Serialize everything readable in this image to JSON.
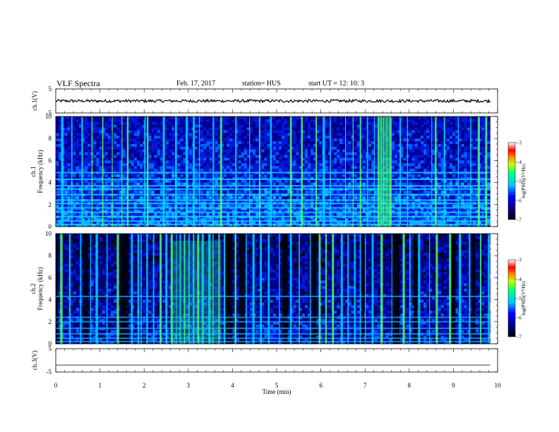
{
  "header": {
    "title": "VLF Spectra",
    "date": "Feb. 17, 2017",
    "station": "station= HUS",
    "start": "start  UT =   12: 10: 3"
  },
  "chart_data": {
    "type": "heatmap",
    "title": "VLF Spectra",
    "xlabel": "Time  (min)",
    "xlim": [
      0,
      10
    ],
    "x_ticks": [
      "0",
      "1",
      "2",
      "3",
      "4",
      "5",
      "6",
      "7",
      "8",
      "9",
      "10"
    ],
    "panels": [
      {
        "name": "ch.1",
        "type": "line",
        "ylabel": "ch.1(V)",
        "y_ticks": [
          "5",
          "-5"
        ],
        "ylim": [
          -5,
          5
        ],
        "level": 0,
        "t_end": 9.83
      },
      {
        "name": "ch.1",
        "type": "heatmap",
        "ylabel": "ch.1\nFrequency  (kHz)",
        "ylabel_line1": "ch.1",
        "ylabel_line2": "Frequency  (kHz)",
        "y_ticks": [
          "0",
          "2",
          "4",
          "6",
          "8",
          "10"
        ],
        "ylim": [
          0,
          10
        ],
        "t_end": 9.83,
        "line_freqs_khz": [
          0.2,
          0.5,
          0.9,
          1.3,
          1.7,
          2.1,
          2.4,
          2.9,
          3.4,
          3.7,
          4.3,
          4.9
        ],
        "burst_times_min": [
          0.12,
          0.35,
          0.58,
          0.81,
          1.05,
          1.27,
          1.49,
          1.61,
          2.0,
          2.06,
          2.42,
          2.7,
          2.94,
          3.1,
          3.24,
          3.55,
          3.72,
          4.06,
          4.38,
          4.6,
          4.85,
          5.3,
          5.55,
          5.88,
          6.04,
          6.2,
          6.55,
          6.72,
          6.88,
          7.04,
          7.2,
          7.29,
          7.35,
          7.41,
          7.48,
          7.55,
          7.78,
          7.95,
          8.5,
          8.58,
          8.78,
          9.1,
          9.38,
          9.55,
          9.72
        ],
        "colorbar": {
          "label": "log(PSD)(V²/Hz)",
          "ticks": [
            "-3",
            "-4",
            "-5",
            "-6",
            "-7"
          ],
          "range": [
            -7,
            -3
          ]
        }
      },
      {
        "name": "ch.2",
        "type": "heatmap",
        "ylabel": "ch.2\nFrequency  (kHz)",
        "ylabel_line1": "ch.2",
        "ylabel_line2": "Frequency  (kHz)",
        "y_ticks": [
          "0",
          "2",
          "4",
          "6",
          "8",
          "10"
        ],
        "ylim": [
          0,
          10
        ],
        "t_end": 9.83,
        "line_freqs_khz": [
          0.2,
          0.5,
          0.9,
          1.4,
          2.0,
          2.4,
          4.3
        ],
        "burst_times_min": [
          0.1,
          0.3,
          0.55,
          0.78,
          0.9,
          1.15,
          1.38,
          1.7,
          1.85,
          1.92,
          2.05,
          2.2,
          2.35,
          2.48,
          2.6,
          2.72,
          2.8,
          2.9,
          3.0,
          3.1,
          3.2,
          3.3,
          3.45,
          3.55,
          3.68,
          3.8,
          4.05,
          4.3,
          4.45,
          4.62,
          4.8,
          5.05,
          5.3,
          5.5,
          5.75,
          5.95,
          6.1,
          6.25,
          6.45,
          6.6,
          6.75,
          6.88,
          7.0,
          7.15,
          7.35,
          7.6,
          7.85,
          8.0,
          8.2,
          8.45,
          8.6,
          8.9,
          9.12,
          9.35,
          9.6,
          9.78
        ],
        "colorbar": {
          "label": "log(PSD)(V²/Hz)",
          "ticks": [
            "-3",
            "-4",
            "-5",
            "-6",
            "-7"
          ],
          "range": [
            -7,
            -3
          ]
        }
      },
      {
        "name": "ch.3",
        "type": "line",
        "ylabel": "ch.3(V)",
        "y_ticks": [
          "5",
          "-5"
        ],
        "ylim": [
          -5,
          5
        ],
        "level": -2,
        "t_end": 9.83
      }
    ]
  }
}
